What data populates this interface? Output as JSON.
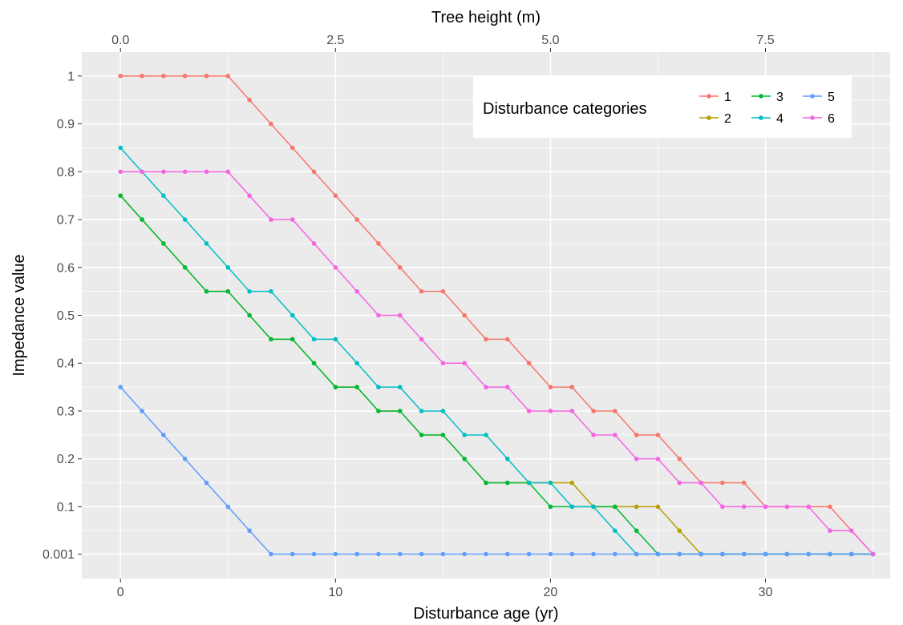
{
  "chart_data": {
    "type": "line",
    "xlabel": "Disturbance age (yr)",
    "x2label": "Tree height (m)",
    "ylabel": "Impedance value",
    "xlim": [
      -1.8,
      35.8
    ],
    "ylim": [
      -0.05,
      1.05
    ],
    "x_ticks": [
      0,
      10,
      20,
      30
    ],
    "x_tick_labels": [
      "0",
      "10",
      "20",
      "30"
    ],
    "x2_ticks": [
      0,
      10,
      20,
      30
    ],
    "x2_tick_labels": [
      "0.0",
      "2.5",
      "5.0",
      "7.5"
    ],
    "y_ticks": [
      0.001,
      0.1,
      0.2,
      0.3,
      0.4,
      0.5,
      0.6,
      0.7,
      0.8,
      0.9,
      1
    ],
    "y_tick_labels": [
      "0.001",
      "0.1",
      "0.2",
      "0.3",
      "0.4",
      "0.5",
      "0.6",
      "0.7",
      "0.8",
      "0.9",
      "1"
    ],
    "grid": true,
    "legend": {
      "title": "Disturbance categories",
      "position": "top-right",
      "entries": [
        "1",
        "2",
        "3",
        "4",
        "5",
        "6"
      ]
    },
    "x": [
      0,
      1,
      2,
      3,
      4,
      5,
      6,
      7,
      8,
      9,
      10,
      11,
      12,
      13,
      14,
      15,
      16,
      17,
      18,
      19,
      20,
      21,
      22,
      23,
      24,
      25,
      26,
      27,
      28,
      29,
      30,
      31,
      32,
      33,
      34,
      35
    ],
    "series": [
      {
        "name": "1",
        "color": "#F8766D",
        "values": [
          1,
          1,
          1,
          1,
          1,
          1,
          0.95,
          0.9,
          0.85,
          0.8,
          0.75,
          0.7,
          0.65,
          0.6,
          0.55,
          0.55,
          0.5,
          0.45,
          0.45,
          0.4,
          0.35,
          0.35,
          0.3,
          0.3,
          0.25,
          0.25,
          0.2,
          0.15,
          0.15,
          0.15,
          0.1,
          0.1,
          0.1,
          0.1,
          0.05,
          0.001
        ]
      },
      {
        "name": "2",
        "color": "#B79F00",
        "values": [
          0.75,
          0.7,
          0.65,
          0.6,
          0.55,
          0.55,
          0.5,
          0.45,
          0.45,
          0.4,
          0.35,
          0.35,
          0.3,
          0.3,
          0.25,
          0.25,
          0.2,
          0.15,
          0.15,
          0.15,
          0.15,
          0.15,
          0.1,
          0.1,
          0.1,
          0.1,
          0.05,
          0.001,
          0.001,
          0.001,
          0.001,
          0.001,
          0.001,
          0.001,
          0.001,
          0.001
        ]
      },
      {
        "name": "3",
        "color": "#00BA38",
        "values": [
          0.75,
          0.7,
          0.65,
          0.6,
          0.55,
          0.55,
          0.5,
          0.45,
          0.45,
          0.4,
          0.35,
          0.35,
          0.3,
          0.3,
          0.25,
          0.25,
          0.2,
          0.15,
          0.15,
          0.15,
          0.1,
          0.1,
          0.1,
          0.1,
          0.05,
          0.001,
          0.001,
          0.001,
          0.001,
          0.001,
          0.001,
          0.001,
          0.001,
          0.001,
          0.001,
          0.001
        ]
      },
      {
        "name": "4",
        "color": "#00BFC4",
        "values": [
          0.85,
          0.8,
          0.75,
          0.7,
          0.65,
          0.6,
          0.55,
          0.55,
          0.5,
          0.45,
          0.45,
          0.4,
          0.35,
          0.35,
          0.3,
          0.3,
          0.25,
          0.25,
          0.2,
          0.15,
          0.15,
          0.1,
          0.1,
          0.05,
          0.001,
          0.001,
          0.001,
          0.001,
          0.001,
          0.001,
          0.001,
          0.001,
          0.001,
          0.001,
          0.001,
          0.001
        ]
      },
      {
        "name": "5",
        "color": "#619CFF",
        "values": [
          0.35,
          0.3,
          0.25,
          0.2,
          0.15,
          0.1,
          0.05,
          0.001,
          0.001,
          0.001,
          0.001,
          0.001,
          0.001,
          0.001,
          0.001,
          0.001,
          0.001,
          0.001,
          0.001,
          0.001,
          0.001,
          0.001,
          0.001,
          0.001,
          0.001,
          0.001,
          0.001,
          0.001,
          0.001,
          0.001,
          0.001,
          0.001,
          0.001,
          0.001,
          0.001,
          0.001
        ]
      },
      {
        "name": "6",
        "color": "#F564E3",
        "values": [
          0.8,
          0.8,
          0.8,
          0.8,
          0.8,
          0.8,
          0.75,
          0.7,
          0.7,
          0.65,
          0.6,
          0.55,
          0.5,
          0.5,
          0.45,
          0.4,
          0.4,
          0.35,
          0.35,
          0.3,
          0.3,
          0.3,
          0.25,
          0.25,
          0.2,
          0.2,
          0.15,
          0.15,
          0.1,
          0.1,
          0.1,
          0.1,
          0.1,
          0.05,
          0.05,
          0.001
        ]
      }
    ],
    "colors": {
      "panel": "#EBEBEB",
      "grid": "#FFFFFF",
      "tick": "#333333"
    }
  }
}
